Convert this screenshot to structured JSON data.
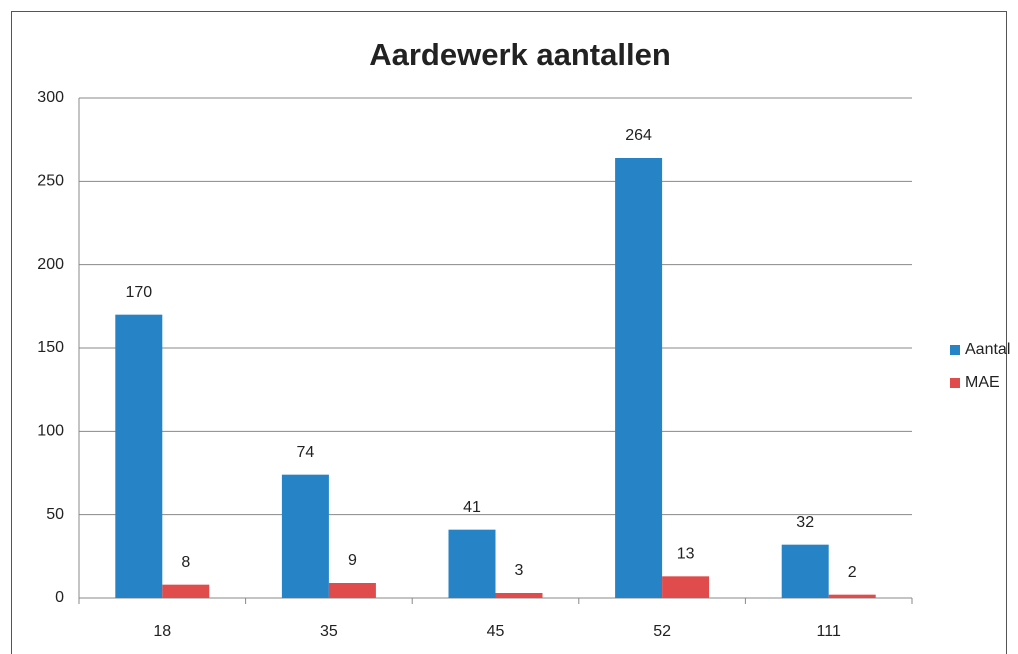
{
  "chart_data": {
    "type": "bar",
    "title": "Aardewerk aantallen",
    "categories": [
      "18",
      "35",
      "45",
      "52",
      "111"
    ],
    "series": [
      {
        "name": "Aantal",
        "color": "#2683c6",
        "values": [
          170,
          74,
          41,
          264,
          32
        ]
      },
      {
        "name": "MAE",
        "color": "#e04b4b",
        "values": [
          8,
          9,
          3,
          13,
          2
        ]
      }
    ],
    "ylim": [
      0,
      300
    ],
    "yticks": [
      0,
      50,
      100,
      150,
      200,
      250,
      300
    ],
    "grid": true,
    "legend": "right"
  }
}
